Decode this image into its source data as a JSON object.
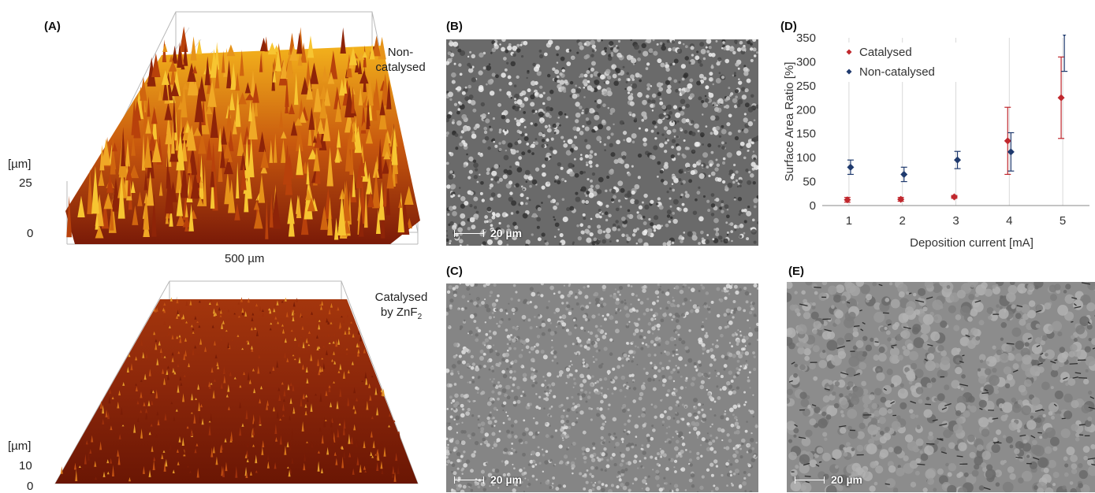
{
  "panels": {
    "a": {
      "label": "(A)",
      "top_caption_line1": "Non-",
      "top_caption_line2": "catalysed",
      "bottom_caption_line1": "Catalysed",
      "bottom_caption_prefix": "by ZnF",
      "bottom_caption_sub": "2",
      "top_zunit": "[µm]",
      "top_zticks": [
        "25",
        "0"
      ],
      "bottom_zunit": "[µm]",
      "bottom_zticks": [
        "10",
        "0"
      ],
      "width_label": "500 µm"
    },
    "b": {
      "label": "(B)",
      "scalebar": "20 µm"
    },
    "c": {
      "label": "(C)",
      "scalebar": "20 µm"
    },
    "d": {
      "label": "(D)"
    },
    "e": {
      "label": "(E)",
      "scalebar": "20 µm"
    }
  },
  "colors": {
    "catalysed": "#c0272d",
    "non_catalysed": "#1f3a6e",
    "axis": "#888888",
    "grid": "#d9d9d9"
  },
  "chart_data": {
    "type": "scatter",
    "title": "",
    "xlabel": "Deposition current [mA]",
    "ylabel": "Surface Area Ratio [%]",
    "x_ticks": [
      "1",
      "2",
      "3",
      "4",
      "5"
    ],
    "y_ticks": [
      "0",
      "50",
      "100",
      "150",
      "200",
      "250",
      "300",
      "350"
    ],
    "xlim": [
      0.5,
      5.5
    ],
    "ylim": [
      0,
      350
    ],
    "grid": "vertical",
    "legend_position": "top-left",
    "error_bars": true,
    "series": [
      {
        "name": "Catalysed",
        "x": [
          1,
          2,
          3,
          4,
          5
        ],
        "y": [
          12,
          13,
          18,
          135,
          225
        ],
        "err": [
          5,
          4,
          3,
          70,
          85
        ]
      },
      {
        "name": "Non-catalysed",
        "x": [
          1,
          2,
          3,
          4,
          5
        ],
        "y": [
          80,
          65,
          95,
          112,
          360
        ],
        "err": [
          15,
          15,
          18,
          40,
          80
        ]
      }
    ]
  }
}
